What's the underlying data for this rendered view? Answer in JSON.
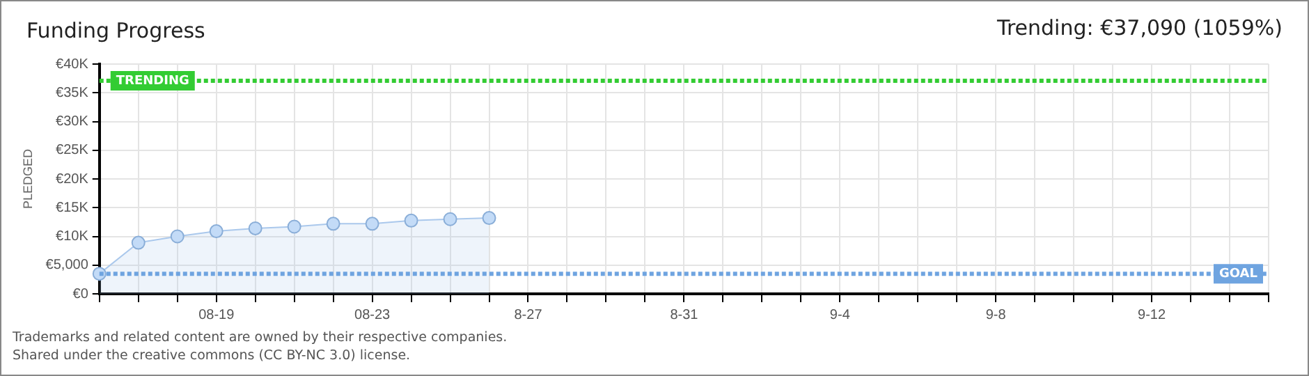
{
  "chart_data": {
    "type": "area",
    "title": "Funding Progress",
    "subtitle": "Trending: €37,090 (1059%)",
    "ylabel": "PLEDGED",
    "categories": [
      null,
      null,
      null,
      "08-19",
      null,
      null,
      null,
      "08-23",
      null,
      null,
      null,
      "8-27",
      null,
      null,
      null,
      "8-31",
      null,
      null,
      null,
      "9-4",
      null,
      null,
      null,
      "9-8",
      null,
      null,
      null,
      "9-12",
      null,
      null,
      null
    ],
    "series": [
      {
        "color": "#aac8ec",
        "values": [
          3500,
          8900,
          10000,
          10900,
          11400,
          11700,
          12200,
          12200,
          12750,
          13000,
          13200,
          null,
          null,
          null,
          null,
          null,
          null,
          null,
          null,
          null,
          null,
          null,
          null,
          null,
          null,
          null,
          null,
          null,
          null,
          null,
          null
        ]
      }
    ],
    "ylim": [
      0,
      40000
    ],
    "yticks": [
      {
        "value": 0,
        "label": "€0"
      },
      {
        "value": 5000,
        "label": "€5,000"
      },
      {
        "value": 10000,
        "label": "€10K"
      },
      {
        "value": 15000,
        "label": "€15K"
      },
      {
        "value": 20000,
        "label": "€20K"
      },
      {
        "value": 25000,
        "label": "€25K"
      },
      {
        "value": 30000,
        "label": "€30K"
      },
      {
        "value": 35000,
        "label": "€35K"
      },
      {
        "value": 40000,
        "label": "€40K"
      }
    ],
    "ref_lines": [
      {
        "axis": "y",
        "value": 37090,
        "label": "TRENDING",
        "color": "#33cc33",
        "line_style": "dotted"
      },
      {
        "axis": "y",
        "value": 3500,
        "label": "GOAL",
        "color": "#6fa4e0",
        "line_style": "dotted"
      }
    ],
    "grid": true,
    "marker": "circle",
    "legend": false,
    "annotations": [
      "Trademarks and related content are owned by their respective companies.",
      "Shared under the creative commons (CC BY-NC 3.0) license."
    ]
  }
}
